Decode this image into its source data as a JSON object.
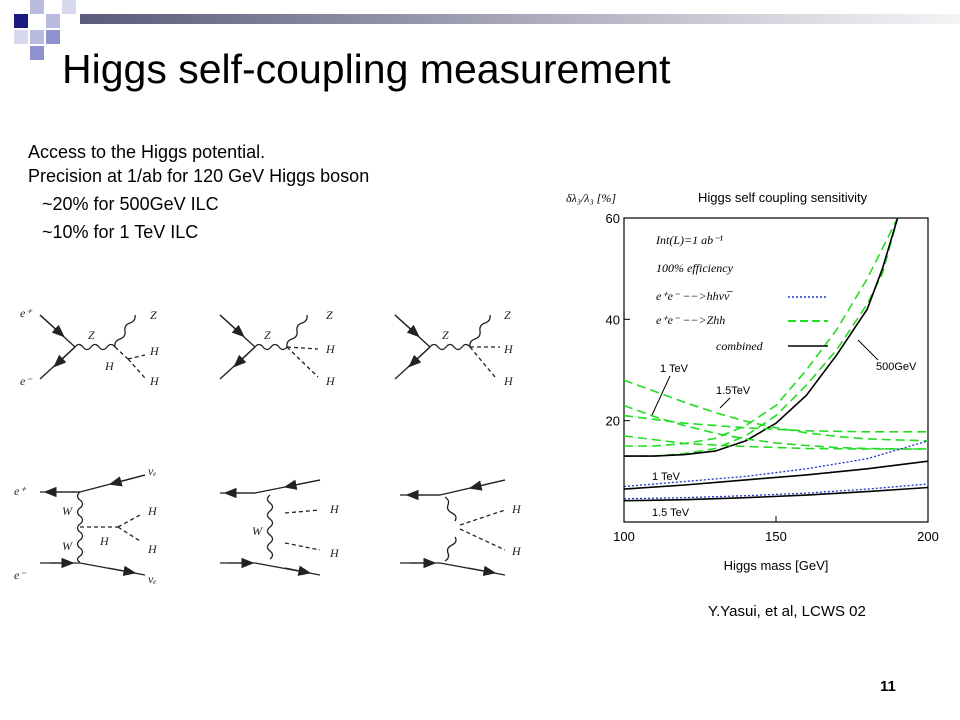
{
  "slide": {
    "title": "Higgs self-coupling measurement",
    "bullets": [
      "Access to the Higgs potential.",
      "Precision at 1/ab for 120 GeV Higgs boson",
      "~20% for 500GeV ILC",
      "~10% for 1 TeV ILC"
    ],
    "credit": "Y.Yasui, et al, LCWS 02",
    "page_number": "11"
  },
  "diagrams": {
    "zh_labels": [
      "e⁺",
      "e⁻",
      "Z",
      "H",
      "Z",
      "H",
      "H"
    ],
    "ww_labels": [
      "e⁺",
      "e⁻",
      "W",
      "W",
      "H",
      "νₑ",
      "νₑ",
      "H",
      "H"
    ]
  },
  "chart_data": {
    "type": "line",
    "title": "Higgs self coupling sensitivity",
    "ylabel": "δλ₃/λ₃ [%]",
    "xlabel": "Higgs mass [GeV]",
    "xlim": [
      100,
      200
    ],
    "ylim": [
      0,
      60
    ],
    "xticks": [
      100,
      150,
      200
    ],
    "yticks": [
      20,
      40,
      60
    ],
    "legend_title_lines": [
      "Int(L)=1 ab⁻¹",
      "100% efficiency"
    ],
    "legend": [
      {
        "label": "e⁺e⁻ −−>hhνν̅",
        "color": "#2233cc",
        "dash": "dotted"
      },
      {
        "label": "e⁺e⁻ −−>Zhh",
        "color": "#22dd22",
        "dash": "dashed"
      },
      {
        "label": "combined",
        "color": "#000000",
        "dash": "solid"
      }
    ],
    "series": [
      {
        "name": "Zhh 500GeV",
        "style": "zhh",
        "x": [
          100,
          110,
          120,
          130,
          140,
          150,
          160,
          170,
          180,
          185,
          190
        ],
        "y": [
          13,
          13,
          13.5,
          14.5,
          17,
          21,
          27,
          34,
          43,
          49,
          60
        ]
      },
      {
        "name": "Zhh 500GeV",
        "style": "zhh",
        "x": [
          100,
          110,
          120,
          130,
          140,
          150,
          160,
          170,
          180,
          185,
          190
        ],
        "y": [
          15,
          15,
          15.5,
          16.5,
          19,
          23,
          30,
          38,
          48,
          54,
          60
        ]
      },
      {
        "name": "combined 500GeV",
        "style": "comb",
        "x": [
          100,
          110,
          120,
          130,
          140,
          150,
          160,
          170,
          180,
          185,
          190
        ],
        "y": [
          13,
          13,
          13.3,
          14,
          16,
          19.5,
          25,
          33,
          42,
          50,
          60
        ]
      },
      {
        "name": "Zhh 1 TeV",
        "style": "zhh",
        "x": [
          100,
          110,
          120,
          130,
          140,
          150,
          160,
          170,
          180,
          190,
          200
        ],
        "y": [
          28,
          25.8,
          23.6,
          21.6,
          19.9,
          18.6,
          17.6,
          16.9,
          16.4,
          16.2,
          16
        ]
      },
      {
        "name": "Zhh 1 TeV",
        "style": "zhh",
        "x": [
          100,
          110,
          120,
          130,
          140,
          150,
          160,
          170,
          180,
          190,
          200
        ],
        "y": [
          23,
          20.8,
          19,
          17.5,
          16.4,
          15.6,
          15.1,
          14.7,
          14.5,
          14.4,
          14.4
        ]
      },
      {
        "name": "Zhh 1.5TeV",
        "style": "zhh",
        "x": [
          100,
          120,
          140,
          160,
          180,
          200
        ],
        "y": [
          21,
          19.5,
          18.6,
          18,
          17.8,
          17.8
        ]
      },
      {
        "name": "Zhh 1.5TeV",
        "style": "zhh",
        "x": [
          100,
          120,
          140,
          160,
          180,
          200
        ],
        "y": [
          17,
          15.5,
          14.9,
          14.5,
          14.4,
          14.4
        ]
      },
      {
        "name": "hhνν 1 TeV",
        "style": "hhvv",
        "x": [
          100,
          120,
          140,
          160,
          180,
          200
        ],
        "y": [
          7,
          8,
          9,
          10.5,
          12.5,
          16
        ]
      },
      {
        "name": "combined 1 TeV",
        "style": "comb",
        "x": [
          100,
          120,
          140,
          160,
          180,
          200
        ],
        "y": [
          6.5,
          7.3,
          8.3,
          9.3,
          10.5,
          12
        ]
      },
      {
        "name": "hhνν 1.5 TeV",
        "style": "hhvv",
        "x": [
          100,
          120,
          140,
          160,
          180,
          200
        ],
        "y": [
          4.6,
          4.8,
          5.2,
          5.7,
          6.5,
          7.5
        ]
      },
      {
        "name": "combined 1.5 TeV",
        "style": "comb",
        "x": [
          100,
          120,
          140,
          160,
          180,
          200
        ],
        "y": [
          4.2,
          4.4,
          4.8,
          5.3,
          6,
          6.8
        ]
      }
    ],
    "annotations": [
      "1 TeV",
      "1.5TeV",
      "500GeV",
      "1 TeV",
      "1.5 TeV"
    ]
  }
}
